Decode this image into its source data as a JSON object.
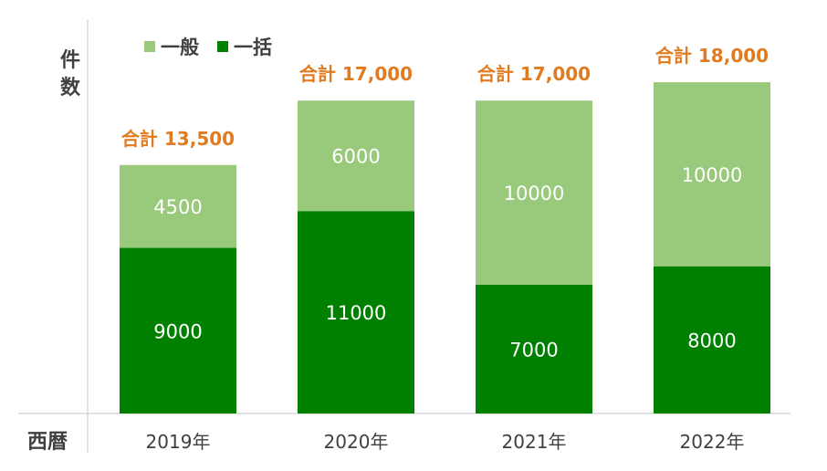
{
  "chart_data": {
    "type": "bar",
    "stacked": true,
    "ylabel": "件数",
    "xlabel": "西暦",
    "categories": [
      "2019年",
      "2020年",
      "2021年",
      "2022年"
    ],
    "series": [
      {
        "name": "一括",
        "color": "#008000",
        "values": [
          9000,
          11000,
          7000,
          8000
        ]
      },
      {
        "name": "一般",
        "color": "#99c97a",
        "values": [
          4500,
          6000,
          10000,
          10000
        ]
      }
    ],
    "totals": [
      "合計 13,500",
      "合計 17,000",
      "合計 17,000",
      "合計 18,000"
    ],
    "total_color": "#e07b1f",
    "ylim": [
      0,
      18500
    ],
    "legend": "top-left",
    "grid": false
  }
}
